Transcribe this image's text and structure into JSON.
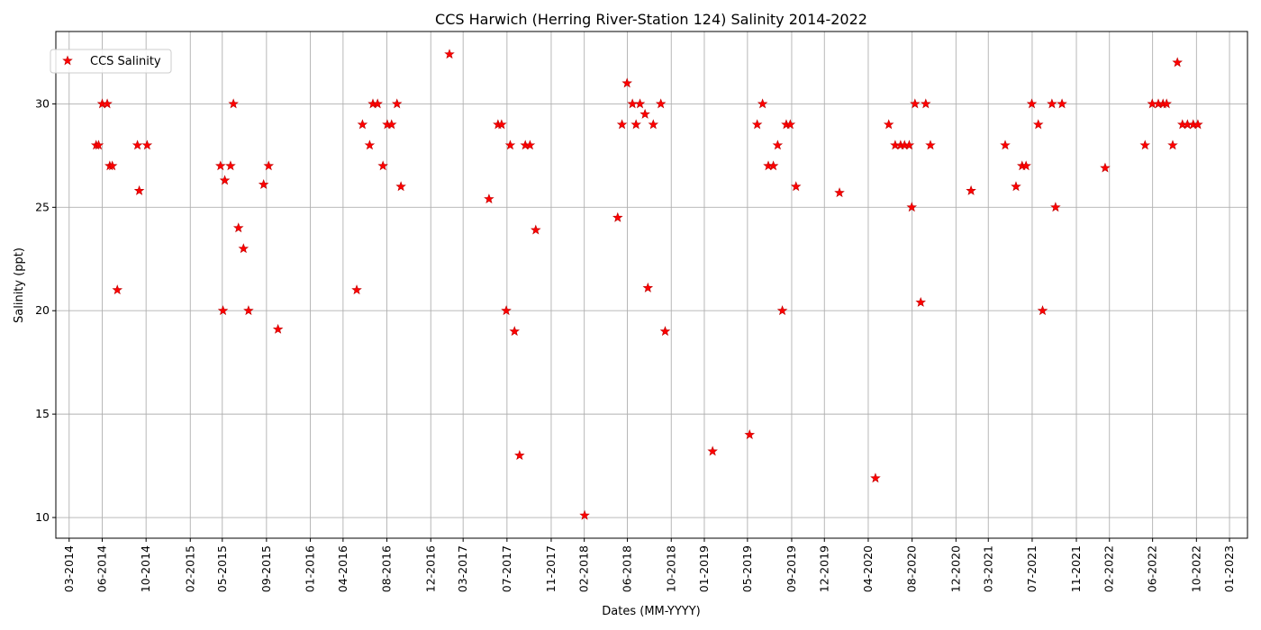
{
  "chart_data": {
    "type": "scatter",
    "title": "CCS Harwich (Herring River-Station 124) Salinity 2014-2022",
    "xlabel": "Dates (MM-YYYY)",
    "ylabel": "Salinity (ppt)",
    "x_type": "date",
    "xlim": [
      "2014-01-23",
      "2023-02-20"
    ],
    "ylim": [
      9.0,
      33.5
    ],
    "x_ticks": [
      "2014-03-01",
      "2014-06-01",
      "2014-10-01",
      "2015-02-01",
      "2015-05-01",
      "2015-09-01",
      "2016-01-01",
      "2016-04-01",
      "2016-08-01",
      "2016-12-01",
      "2017-03-01",
      "2017-07-01",
      "2017-11-01",
      "2018-02-01",
      "2018-06-01",
      "2018-10-01",
      "2019-01-01",
      "2019-05-01",
      "2019-09-01",
      "2019-12-01",
      "2020-04-01",
      "2020-08-01",
      "2020-12-01",
      "2021-03-01",
      "2021-07-01",
      "2021-11-01",
      "2022-02-01",
      "2022-06-01",
      "2022-10-01",
      "2023-01-01"
    ],
    "x_tick_labels": [
      "03-2014",
      "06-2014",
      "10-2014",
      "02-2015",
      "05-2015",
      "09-2015",
      "01-2016",
      "04-2016",
      "08-2016",
      "12-2016",
      "03-2017",
      "07-2017",
      "11-2017",
      "02-2018",
      "06-2018",
      "10-2018",
      "01-2019",
      "05-2019",
      "09-2019",
      "12-2019",
      "04-2020",
      "08-2020",
      "12-2020",
      "03-2021",
      "07-2021",
      "11-2021",
      "02-2022",
      "06-2022",
      "10-2022",
      "01-2023"
    ],
    "y_ticks": [
      10,
      15,
      20,
      25,
      30
    ],
    "y_tick_labels": [
      "10",
      "15",
      "20",
      "25",
      "30"
    ],
    "grid": true,
    "legend_position": "top-left",
    "marker": "star",
    "marker_color": "#ff0000",
    "series": [
      {
        "name": "CCS Salinity",
        "points": [
          [
            "2014-05-15",
            28.0
          ],
          [
            "2014-05-22",
            28.0
          ],
          [
            "2014-06-01",
            30.0
          ],
          [
            "2014-06-15",
            30.0
          ],
          [
            "2014-06-22",
            27.0
          ],
          [
            "2014-06-29",
            27.0
          ],
          [
            "2014-07-13",
            21.0
          ],
          [
            "2014-09-07",
            28.0
          ],
          [
            "2014-09-12",
            25.8
          ],
          [
            "2014-10-04",
            28.0
          ],
          [
            "2015-04-26",
            27.0
          ],
          [
            "2015-05-03",
            20.0
          ],
          [
            "2015-05-08",
            26.3
          ],
          [
            "2015-05-24",
            27.0
          ],
          [
            "2015-06-01",
            30.0
          ],
          [
            "2015-06-15",
            24.0
          ],
          [
            "2015-06-29",
            23.0
          ],
          [
            "2015-07-13",
            20.0
          ],
          [
            "2015-08-24",
            26.1
          ],
          [
            "2015-09-07",
            27.0
          ],
          [
            "2015-10-03",
            19.1
          ],
          [
            "2016-05-09",
            21.0
          ],
          [
            "2016-05-25",
            29.0
          ],
          [
            "2016-06-14",
            28.0
          ],
          [
            "2016-06-23",
            30.0
          ],
          [
            "2016-07-06",
            30.0
          ],
          [
            "2016-07-21",
            27.0
          ],
          [
            "2016-08-02",
            29.0
          ],
          [
            "2016-08-14",
            29.0
          ],
          [
            "2016-08-29",
            30.0
          ],
          [
            "2016-09-09",
            26.0
          ],
          [
            "2017-01-22",
            32.4
          ],
          [
            "2017-05-12",
            25.4
          ],
          [
            "2017-06-06",
            29.0
          ],
          [
            "2017-06-16",
            29.0
          ],
          [
            "2017-06-29",
            20.0
          ],
          [
            "2017-07-10",
            28.0
          ],
          [
            "2017-07-22",
            19.0
          ],
          [
            "2017-08-05",
            13.0
          ],
          [
            "2017-08-21",
            28.0
          ],
          [
            "2017-09-03",
            28.0
          ],
          [
            "2017-09-19",
            23.9
          ],
          [
            "2018-02-02",
            10.1
          ],
          [
            "2018-05-05",
            24.5
          ],
          [
            "2018-05-17",
            29.0
          ],
          [
            "2018-05-31",
            31.0
          ],
          [
            "2018-06-15",
            30.0
          ],
          [
            "2018-06-25",
            29.0
          ],
          [
            "2018-07-06",
            30.0
          ],
          [
            "2018-07-20",
            29.5
          ],
          [
            "2018-07-28",
            21.1
          ],
          [
            "2018-08-12",
            29.0
          ],
          [
            "2018-09-02",
            30.0
          ],
          [
            "2018-09-14",
            19.0
          ],
          [
            "2019-01-24",
            13.2
          ],
          [
            "2019-05-07",
            14.0
          ],
          [
            "2019-05-28",
            29.0
          ],
          [
            "2019-06-12",
            30.0
          ],
          [
            "2019-06-28",
            27.0
          ],
          [
            "2019-07-12",
            27.0
          ],
          [
            "2019-07-24",
            28.0
          ],
          [
            "2019-08-06",
            20.0
          ],
          [
            "2019-08-17",
            29.0
          ],
          [
            "2019-08-28",
            29.0
          ],
          [
            "2019-09-13",
            26.0
          ],
          [
            "2020-01-12",
            25.7
          ],
          [
            "2020-04-21",
            11.9
          ],
          [
            "2020-05-28",
            29.0
          ],
          [
            "2020-06-15",
            28.0
          ],
          [
            "2020-06-30",
            28.0
          ],
          [
            "2020-07-11",
            28.0
          ],
          [
            "2020-07-24",
            28.0
          ],
          [
            "2020-07-31",
            25.0
          ],
          [
            "2020-08-09",
            30.0
          ],
          [
            "2020-08-25",
            20.4
          ],
          [
            "2020-09-08",
            30.0
          ],
          [
            "2020-09-21",
            28.0
          ],
          [
            "2021-01-12",
            25.8
          ],
          [
            "2021-04-17",
            28.0
          ],
          [
            "2021-05-17",
            26.0
          ],
          [
            "2021-06-03",
            27.0
          ],
          [
            "2021-06-14",
            27.0
          ],
          [
            "2021-06-30",
            30.0
          ],
          [
            "2021-07-18",
            29.0
          ],
          [
            "2021-07-30",
            20.0
          ],
          [
            "2021-08-25",
            30.0
          ],
          [
            "2021-09-04",
            25.0
          ],
          [
            "2021-09-22",
            30.0
          ],
          [
            "2022-01-20",
            26.9
          ],
          [
            "2022-05-11",
            28.0
          ],
          [
            "2022-05-31",
            30.0
          ],
          [
            "2022-06-17",
            30.0
          ],
          [
            "2022-06-30",
            30.0
          ],
          [
            "2022-07-10",
            30.0
          ],
          [
            "2022-07-27",
            28.0
          ],
          [
            "2022-08-09",
            32.0
          ],
          [
            "2022-08-23",
            29.0
          ],
          [
            "2022-09-06",
            29.0
          ],
          [
            "2022-09-22",
            29.0
          ],
          [
            "2022-10-05",
            29.0
          ]
        ]
      }
    ]
  }
}
